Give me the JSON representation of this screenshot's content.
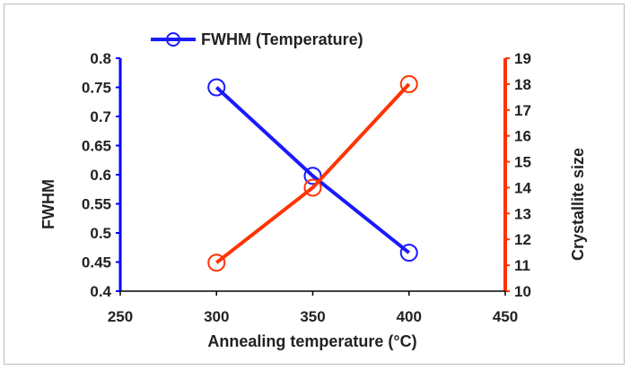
{
  "chart_data": {
    "type": "line",
    "xlabel": "Annealing temperature (°C)",
    "xlim": [
      250,
      450
    ],
    "xticks": [
      250,
      300,
      350,
      400,
      450
    ],
    "left_axis": {
      "label": "FWHM",
      "ylim": [
        0.4,
        0.8
      ],
      "ticks": [
        "0.4",
        "0.45",
        "0.5",
        "0.55",
        "0.6",
        "0.65",
        "0.7",
        "0.75",
        "0.8"
      ],
      "color": "#0000ff"
    },
    "right_axis": {
      "label": "Crystallite size",
      "ylim": [
        10,
        19
      ],
      "ticks": [
        "10",
        "11",
        "12",
        "13",
        "14",
        "15",
        "16",
        "17",
        "18",
        "19"
      ],
      "color": "#ff3300"
    },
    "series": [
      {
        "name": "FWHM (Temperature)",
        "axis": "left",
        "color": "#1a1aff",
        "x": [
          300,
          350,
          400
        ],
        "values": [
          0.75,
          0.598,
          0.466
        ]
      },
      {
        "axis": "right",
        "color": "#ff3300",
        "x": [
          300,
          350,
          400
        ],
        "values": [
          11.1,
          14.0,
          18.0
        ]
      }
    ],
    "legend": {
      "position": "top-left",
      "entries": [
        "FWHM (Temperature)"
      ]
    },
    "grid": false
  }
}
